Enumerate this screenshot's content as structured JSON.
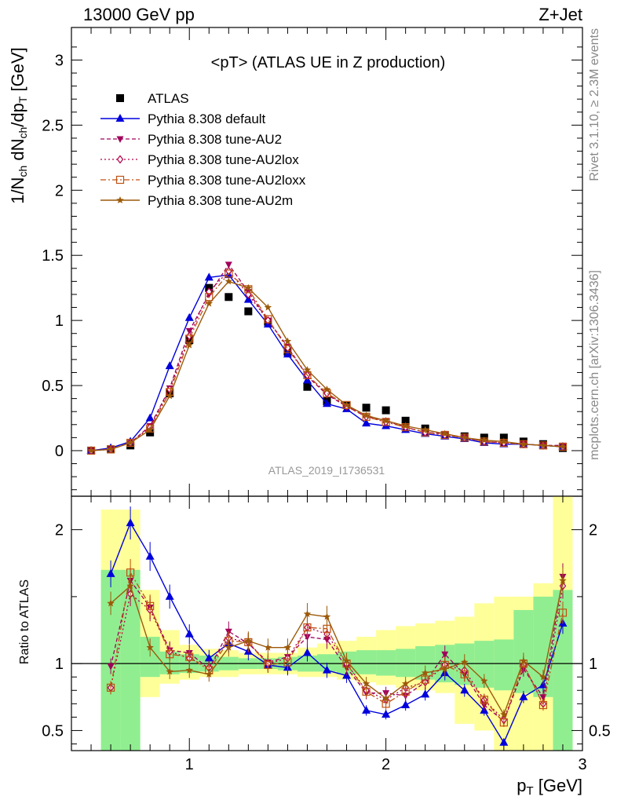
{
  "header": {
    "energy_label": "13000 GeV pp",
    "process_label": "Z+Jet",
    "plot_title": "<pT> (ATLAS UE in Z production)",
    "analysis_id": "ATLAS_2019_I1736531",
    "side_label_top": "Rivet 3.1.10, ≥ 2.3M events",
    "side_label_bottom": "mcplots.cern.ch [arXiv:1306.3436]"
  },
  "colors": {
    "data": "#000000",
    "default": "#0000dd",
    "au2": "#a0005a",
    "au2lox": "#b0004a",
    "au2loxx": "#c05010",
    "au2m": "#9c5a0a",
    "band_outer": "#ffff99",
    "band_inner": "#90ee90"
  },
  "chart_data": [
    {
      "type": "line",
      "name": "main-distribution",
      "ylabel": "1/N_ch dN_ch/dp_T [GeV]",
      "xlim": [
        0.4,
        3.0
      ],
      "ylim": [
        -0.35,
        3.25
      ],
      "yticks": [
        "0",
        "0.5",
        "1",
        "1.5",
        "2",
        "2.5",
        "3"
      ],
      "x": [
        0.5,
        0.6,
        0.7,
        0.8,
        0.9,
        1.0,
        1.1,
        1.2,
        1.3,
        1.4,
        1.5,
        1.6,
        1.7,
        1.8,
        1.9,
        2.0,
        2.1,
        2.2,
        2.3,
        2.4,
        2.5,
        2.6,
        2.7,
        2.8,
        2.9
      ],
      "series": [
        {
          "name": "ATLAS",
          "key": "data",
          "marker": "square",
          "values": [
            0.0,
            0.01,
            0.04,
            0.14,
            0.44,
            0.85,
            1.25,
            1.18,
            1.07,
            0.99,
            0.76,
            0.49,
            0.38,
            0.35,
            0.33,
            0.31,
            0.23,
            0.17,
            0.12,
            0.11,
            0.1,
            0.1,
            0.07,
            0.05,
            0.02
          ]
        },
        {
          "name": "Pythia 8.308 default",
          "key": "default",
          "marker": "triangle",
          "values": [
            0.0,
            0.02,
            0.07,
            0.25,
            0.65,
            1.02,
            1.33,
            1.35,
            1.16,
            0.97,
            0.74,
            0.54,
            0.36,
            0.32,
            0.21,
            0.19,
            0.16,
            0.13,
            0.11,
            0.09,
            0.06,
            0.05,
            0.05,
            0.04,
            0.03
          ]
        },
        {
          "name": "Pythia 8.308 tune-AU2",
          "key": "au2",
          "marker": "triangle-down",
          "values": [
            0.0,
            0.01,
            0.06,
            0.19,
            0.48,
            0.92,
            1.2,
            1.43,
            1.22,
            1.0,
            0.8,
            0.57,
            0.43,
            0.34,
            0.26,
            0.23,
            0.18,
            0.14,
            0.13,
            0.1,
            0.07,
            0.06,
            0.05,
            0.04,
            0.04
          ]
        },
        {
          "name": "Pythia 8.308 tune-AU2lox",
          "key": "au2lox",
          "marker": "diamond",
          "values": [
            0.0,
            0.01,
            0.06,
            0.18,
            0.47,
            0.88,
            1.22,
            1.38,
            1.2,
            1.0,
            0.79,
            0.58,
            0.44,
            0.34,
            0.26,
            0.22,
            0.18,
            0.14,
            0.12,
            0.1,
            0.07,
            0.06,
            0.05,
            0.04,
            0.03
          ]
        },
        {
          "name": "Pythia 8.308 tune-AU2loxx",
          "key": "au2loxx",
          "marker": "square-open",
          "values": [
            0.0,
            0.01,
            0.06,
            0.17,
            0.45,
            0.86,
            1.18,
            1.36,
            1.24,
            1.01,
            0.78,
            0.58,
            0.44,
            0.35,
            0.26,
            0.22,
            0.18,
            0.14,
            0.12,
            0.1,
            0.07,
            0.06,
            0.05,
            0.04,
            0.03
          ]
        },
        {
          "name": "Pythia 8.308 tune-AU2m",
          "key": "au2m",
          "marker": "star",
          "values": [
            0.0,
            0.01,
            0.06,
            0.16,
            0.42,
            0.81,
            1.13,
            1.3,
            1.25,
            1.1,
            0.84,
            0.62,
            0.47,
            0.35,
            0.27,
            0.23,
            0.19,
            0.16,
            0.13,
            0.1,
            0.08,
            0.07,
            0.05,
            0.04,
            0.03
          ]
        }
      ]
    },
    {
      "type": "line",
      "name": "ratio-panel",
      "xlabel": "p_T [GeV]",
      "ylabel": "Ratio to ATLAS",
      "xlim": [
        0.4,
        3.0
      ],
      "ylim": [
        0.35,
        2.25
      ],
      "xticks": [
        "1",
        "2",
        "3"
      ],
      "yticks": [
        "0.5",
        "1",
        "2"
      ],
      "x": [
        0.6,
        0.7,
        0.8,
        0.9,
        1.0,
        1.1,
        1.2,
        1.3,
        1.4,
        1.5,
        1.6,
        1.7,
        1.8,
        1.9,
        2.0,
        2.1,
        2.2,
        2.3,
        2.4,
        2.5,
        2.6,
        2.7,
        2.8,
        2.9
      ],
      "band_outer": [
        [
          0.55,
          2.15
        ],
        [
          0.45,
          2.15
        ],
        [
          0.75,
          1.55
        ],
        [
          0.85,
          1.25
        ],
        [
          0.88,
          1.14
        ],
        [
          0.9,
          1.11
        ],
        [
          0.9,
          1.1
        ],
        [
          0.92,
          1.08
        ],
        [
          0.92,
          1.08
        ],
        [
          0.92,
          1.08
        ],
        [
          0.9,
          1.12
        ],
        [
          0.9,
          1.15
        ],
        [
          0.88,
          1.17
        ],
        [
          0.86,
          1.2
        ],
        [
          0.84,
          1.25
        ],
        [
          0.82,
          1.28
        ],
        [
          0.8,
          1.3
        ],
        [
          0.78,
          1.32
        ],
        [
          0.55,
          1.35
        ],
        [
          0.5,
          1.45
        ],
        [
          0.35,
          1.5
        ],
        [
          0.25,
          1.5
        ],
        [
          0.3,
          1.6
        ],
        [
          0.25,
          2.25
        ]
      ],
      "band_inner": [
        [
          0.35,
          1.7
        ],
        [
          0.35,
          1.7
        ],
        [
          0.9,
          1.2
        ],
        [
          0.92,
          1.09
        ],
        [
          0.93,
          1.07
        ],
        [
          0.94,
          1.06
        ],
        [
          0.95,
          1.05
        ],
        [
          0.96,
          1.04
        ],
        [
          0.96,
          1.04
        ],
        [
          0.95,
          1.05
        ],
        [
          0.94,
          1.06
        ],
        [
          0.94,
          1.07
        ],
        [
          0.92,
          1.09
        ],
        [
          0.92,
          1.1
        ],
        [
          0.91,
          1.1
        ],
        [
          0.9,
          1.11
        ],
        [
          0.88,
          1.13
        ],
        [
          0.86,
          1.14
        ],
        [
          0.84,
          1.15
        ],
        [
          0.82,
          1.17
        ],
        [
          0.8,
          1.18
        ],
        [
          0.78,
          1.4
        ],
        [
          0.75,
          1.5
        ],
        [
          0.25,
          1.55
        ]
      ],
      "series": [
        {
          "name": "Pythia 8.308 default",
          "key": "default",
          "marker": "triangle",
          "values": [
            1.67,
            2.05,
            1.8,
            1.5,
            1.22,
            1.04,
            1.15,
            1.09,
            0.99,
            0.97,
            1.08,
            0.95,
            0.91,
            0.65,
            0.62,
            0.69,
            0.77,
            0.93,
            0.8,
            0.65,
            0.41,
            0.75,
            0.84,
            1.3
          ]
        },
        {
          "name": "Pythia 8.308 tune-AU2",
          "key": "au2",
          "marker": "triangle-down",
          "values": [
            0.98,
            1.62,
            1.42,
            1.1,
            1.08,
            0.96,
            1.24,
            1.15,
            1.01,
            1.05,
            1.2,
            1.18,
            0.97,
            0.78,
            0.78,
            0.76,
            0.86,
            1.07,
            0.92,
            0.69,
            0.57,
            0.96,
            0.75,
            1.65
          ]
        },
        {
          "name": "Pythia 8.308 tune-AU2lox",
          "key": "au2lox",
          "marker": "diamond",
          "values": [
            0.82,
            1.52,
            1.4,
            1.09,
            1.04,
            0.97,
            1.19,
            1.16,
            1.0,
            1.04,
            1.27,
            1.22,
            1.0,
            0.8,
            0.73,
            0.82,
            0.86,
            0.99,
            0.95,
            0.73,
            0.58,
            0.99,
            0.7,
            1.58
          ]
        },
        {
          "name": "Pythia 8.308 tune-AU2loxx",
          "key": "au2loxx",
          "marker": "square-open",
          "values": [
            0.82,
            1.68,
            1.43,
            1.07,
            1.05,
            0.95,
            1.17,
            1.16,
            0.99,
            1.01,
            1.27,
            1.26,
            1.0,
            0.79,
            0.7,
            0.79,
            0.88,
            0.99,
            0.92,
            0.73,
            0.56,
            1.0,
            0.69,
            1.38
          ]
        },
        {
          "name": "Pythia 8.308 tune-AU2m",
          "key": "au2m",
          "marker": "star",
          "values": [
            1.45,
            1.58,
            1.12,
            0.94,
            0.95,
            0.92,
            1.12,
            1.17,
            1.12,
            1.12,
            1.37,
            1.35,
            1.02,
            0.85,
            0.74,
            0.85,
            0.93,
            0.96,
            1.01,
            0.87,
            0.62,
            1.02,
            0.9,
            1.62
          ]
        }
      ]
    }
  ]
}
